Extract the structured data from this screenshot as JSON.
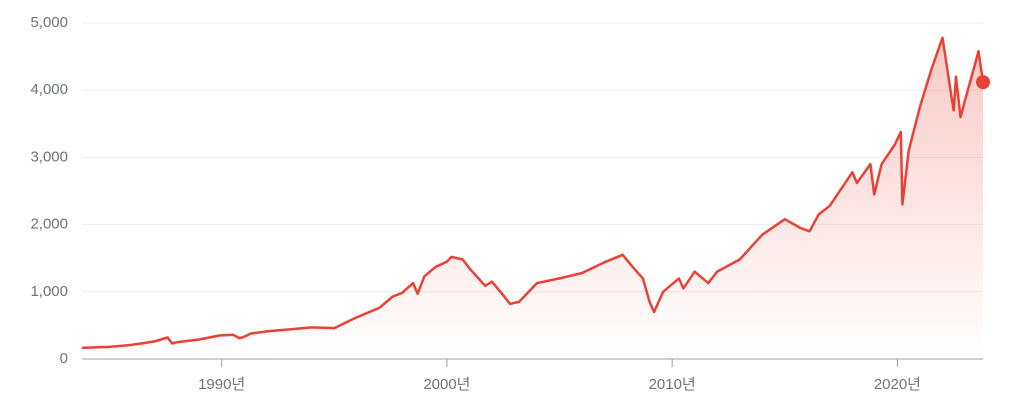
{
  "chart_data": {
    "type": "line",
    "x": [
      1983.8,
      1985,
      1986,
      1987,
      1987.6,
      1987.8,
      1988,
      1989,
      1989.9,
      1990.5,
      1990.8,
      1991,
      1991.3,
      1992,
      1993,
      1994,
      1995,
      1996,
      1997,
      1997.6,
      1998,
      1998.5,
      1998.7,
      1999,
      1999.5,
      2000,
      2000.2,
      2000.7,
      2001,
      2001.7,
      2002,
      2002.5,
      2002.8,
      2003.2,
      2004,
      2005,
      2006,
      2007,
      2007.8,
      2008.3,
      2008.7,
      2009,
      2009.2,
      2009.6,
      2010.3,
      2010.5,
      2011,
      2011.6,
      2012,
      2013,
      2014,
      2015,
      2015.7,
      2016.1,
      2016.5,
      2017,
      2018,
      2018.2,
      2018.8,
      2018.97,
      2019.3,
      2019.9,
      2020.15,
      2020.22,
      2020.5,
      2021,
      2021.5,
      2022,
      2022.4,
      2022.5,
      2022.6,
      2022.8,
      2023,
      2023.5,
      2023.6,
      2023.8
    ],
    "series": [
      {
        "color": "#e94235",
        "values": [
          165,
          180,
          210,
          260,
          320,
          230,
          250,
          290,
          350,
          360,
          310,
          330,
          380,
          410,
          440,
          470,
          460,
          620,
          760,
          930,
          980,
          1130,
          970,
          1230,
          1370,
          1450,
          1520,
          1480,
          1350,
          1090,
          1150,
          950,
          820,
          850,
          1130,
          1200,
          1280,
          1440,
          1550,
          1350,
          1200,
          850,
          700,
          1000,
          1200,
          1050,
          1300,
          1130,
          1300,
          1480,
          1850,
          2080,
          1950,
          1900,
          2150,
          2280,
          2780,
          2620,
          2900,
          2450,
          2900,
          3200,
          3380,
          2300,
          3100,
          3750,
          4300,
          4780,
          3900,
          3700,
          4200,
          3600,
          3850,
          4450,
          4580,
          4120
        ]
      }
    ],
    "xlim": [
      1983.8,
      2023.8
    ],
    "xticks": [
      {
        "value": 1990,
        "label": "1990년"
      },
      {
        "value": 2000,
        "label": "2000년"
      },
      {
        "value": 2010,
        "label": "2010년"
      },
      {
        "value": 2020,
        "label": "2020년"
      }
    ],
    "ylim": [
      0,
      5000
    ],
    "yticks": [
      0,
      {
        "value": 1000,
        "label": "1,000"
      },
      {
        "value": 2000,
        "label": "2,000"
      },
      {
        "value": 3000,
        "label": "3,000"
      },
      {
        "value": 4000,
        "label": "4,000"
      },
      {
        "value": 5000,
        "label": "5,000"
      }
    ],
    "grid": true
  }
}
